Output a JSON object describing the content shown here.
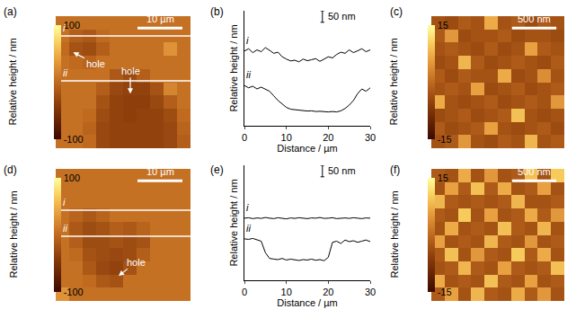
{
  "chart_data": [
    {
      "type": "heatmap",
      "panel": "(a)",
      "x": [
        1.5,
        4.5,
        7.5,
        10.5,
        13.5,
        16.5,
        19.5,
        22.5,
        25.5,
        28.5
      ],
      "y": [
        1.5,
        4.5,
        7.5,
        10.5,
        13.5,
        16.5,
        19.5,
        22.5,
        25.5,
        28.5
      ],
      "xlim": [
        0,
        30
      ],
      "ylim": [
        0,
        30
      ],
      "tick_labels": false,
      "z": [
        [
          5,
          5,
          0,
          -30,
          -35,
          -35,
          -35,
          -35,
          -30,
          -10
        ],
        [
          5,
          5,
          -5,
          -30,
          -35,
          -35,
          -35,
          -35,
          -30,
          -5
        ],
        [
          5,
          5,
          0,
          -25,
          -35,
          -38,
          -35,
          -35,
          -25,
          0
        ],
        [
          5,
          5,
          5,
          -20,
          -35,
          -38,
          -38,
          -30,
          -10,
          5
        ],
        [
          5,
          5,
          5,
          -10,
          -30,
          -35,
          -35,
          -20,
          20,
          5
        ],
        [
          5,
          5,
          5,
          5,
          -15,
          -25,
          -10,
          5,
          5,
          5
        ],
        [
          5,
          0,
          -5,
          5,
          5,
          5,
          5,
          5,
          5,
          5
        ],
        [
          0,
          -20,
          -25,
          -10,
          5,
          5,
          5,
          5,
          30,
          5
        ],
        [
          5,
          -10,
          -15,
          0,
          5,
          5,
          5,
          5,
          5,
          5
        ],
        [
          5,
          5,
          5,
          5,
          5,
          5,
          5,
          5,
          5,
          5
        ]
      ],
      "colorbar": {
        "title": "Relative height / nm",
        "range": [
          -100,
          100
        ],
        "ticks": [
          -100,
          100
        ]
      },
      "scale_bar": {
        "length": 10,
        "label": "10 µm"
      },
      "lines": [
        {
          "label": "i",
          "y": 25.5
        },
        {
          "label": "ii",
          "y": 15.3
        }
      ],
      "annotations": [
        {
          "text": "hole",
          "x": 3.9,
          "y": 21.8,
          "text_x": 8.8,
          "text_y": 19.2
        },
        {
          "text": "hole",
          "x": 16.6,
          "y": 12.4,
          "text_x": 16.6,
          "text_y": 17.6
        }
      ]
    },
    {
      "type": "line",
      "panel": "(b)",
      "x": [
        0,
        1,
        2,
        3,
        4,
        5,
        6,
        7,
        8,
        9,
        10,
        11,
        12,
        13,
        14,
        15,
        16,
        17,
        18,
        19,
        20,
        21,
        22,
        23,
        24,
        25,
        26,
        27,
        28,
        29,
        30
      ],
      "xlim": [
        0,
        30
      ],
      "xticks": [
        0,
        10,
        20,
        30
      ],
      "ylim": [
        0,
        500
      ],
      "x_label": "Distance / µm",
      "y_label": "Relative height / nm",
      "tick_labels": "x",
      "grid": false,
      "series": [
        {
          "name": "i",
          "color": "#000000",
          "values": [
            325,
            335,
            318,
            330,
            322,
            340,
            328,
            315,
            320,
            300,
            290,
            282,
            285,
            278,
            290,
            283,
            287,
            292,
            280,
            290,
            300,
            295,
            310,
            320,
            315,
            330,
            318,
            326,
            335,
            322,
            330
          ]
        },
        {
          "name": "ii",
          "color": "#000000",
          "values": [
            175,
            165,
            172,
            160,
            168,
            158,
            150,
            130,
            110,
            95,
            80,
            72,
            70,
            68,
            66,
            64,
            65,
            62,
            63,
            61,
            60,
            62,
            60,
            65,
            75,
            90,
            110,
            140,
            160,
            150,
            165
          ]
        }
      ],
      "scale_bar": {
        "length": 50,
        "label": "50 nm"
      }
    },
    {
      "type": "heatmap",
      "panel": "(c)",
      "x": [
        0.075,
        0.225,
        0.375,
        0.525,
        0.675,
        0.825,
        0.975,
        1.125,
        1.275,
        1.425
      ],
      "y": [
        0.075,
        0.225,
        0.375,
        0.525,
        0.675,
        0.825,
        0.975,
        1.125,
        1.275,
        1.425
      ],
      "xlim": [
        0,
        1.5
      ],
      "ylim": [
        0,
        1.5
      ],
      "tick_labels": false,
      "z": [
        [
          -3,
          -2,
          5,
          -3,
          -4,
          -2,
          -3,
          8,
          -3,
          -2
        ],
        [
          -2,
          -4,
          -3,
          -2,
          6,
          -3,
          -4,
          -3,
          -2,
          -4
        ],
        [
          -4,
          -3,
          -2,
          -4,
          -3,
          -2,
          9,
          -3,
          -4,
          -3
        ],
        [
          7,
          -3,
          -4,
          -3,
          -2,
          -4,
          -3,
          -2,
          -3,
          5
        ],
        [
          -3,
          -2,
          -3,
          6,
          -4,
          -3,
          -2,
          -4,
          -3,
          -2
        ],
        [
          -2,
          -4,
          -2,
          -3,
          -3,
          7,
          -4,
          -3,
          4,
          -3
        ],
        [
          -4,
          -3,
          8,
          -2,
          -4,
          -3,
          -2,
          -3,
          -4,
          -2
        ],
        [
          -3,
          -2,
          -3,
          -4,
          -2,
          -4,
          -3,
          6,
          -2,
          -3
        ],
        [
          -2,
          5,
          -4,
          -3,
          -3,
          -2,
          -4,
          -3,
          -3,
          -4
        ],
        [
          -3,
          -4,
          -2,
          -3,
          7,
          -3,
          -2,
          -4,
          -2,
          -3
        ]
      ],
      "colorbar": {
        "title": "Relative height / nm",
        "range": [
          -15,
          15
        ],
        "ticks": [
          -15,
          15
        ]
      },
      "scale_bar": {
        "length": 0.5,
        "label": "500 nm"
      }
    },
    {
      "type": "heatmap",
      "panel": "(d)",
      "x": [
        1.5,
        4.5,
        7.5,
        10.5,
        13.5,
        16.5,
        19.5,
        22.5,
        25.5,
        28.5
      ],
      "y": [
        1.5,
        4.5,
        7.5,
        10.5,
        13.5,
        16.5,
        19.5,
        22.5,
        25.5,
        28.5
      ],
      "xlim": [
        0,
        30
      ],
      "ylim": [
        0,
        30
      ],
      "tick_labels": false,
      "z": [
        [
          30,
          5,
          5,
          5,
          5,
          5,
          5,
          5,
          5,
          5
        ],
        [
          5,
          5,
          0,
          -15,
          -20,
          5,
          5,
          5,
          5,
          5
        ],
        [
          5,
          5,
          -15,
          -30,
          -35,
          -20,
          5,
          5,
          5,
          5
        ],
        [
          5,
          0,
          -20,
          -25,
          -30,
          -25,
          -10,
          5,
          5,
          5
        ],
        [
          5,
          -10,
          -25,
          -25,
          -20,
          -25,
          -20,
          5,
          5,
          5
        ],
        [
          5,
          -15,
          -25,
          -20,
          -10,
          -15,
          -5,
          5,
          5,
          5
        ],
        [
          5,
          -5,
          -15,
          -5,
          5,
          5,
          5,
          5,
          5,
          5
        ],
        [
          5,
          5,
          5,
          5,
          5,
          5,
          5,
          5,
          5,
          5
        ],
        [
          5,
          5,
          5,
          5,
          5,
          5,
          5,
          5,
          5,
          5
        ],
        [
          5,
          5,
          5,
          5,
          5,
          5,
          5,
          5,
          5,
          5
        ]
      ],
      "colorbar": {
        "title": "Relative height / nm",
        "range": [
          -100,
          100
        ],
        "ticks": [
          -100,
          100
        ]
      },
      "scale_bar": {
        "length": 10,
        "label": "10 µm"
      },
      "lines": [
        {
          "label": "i",
          "y": 20.6
        },
        {
          "label": "ii",
          "y": 14.7
        }
      ],
      "annotations": [
        {
          "text": "hole",
          "x": 14.0,
          "y": 5.7,
          "text_x": 17.9,
          "text_y": 8.8
        }
      ]
    },
    {
      "type": "line",
      "panel": "(e)",
      "x": [
        0,
        1,
        2,
        3,
        4,
        5,
        6,
        7,
        8,
        9,
        10,
        11,
        12,
        13,
        14,
        15,
        16,
        17,
        18,
        19,
        20,
        21,
        22,
        23,
        24,
        25,
        26,
        27,
        28,
        29,
        30
      ],
      "xlim": [
        0,
        30
      ],
      "xticks": [
        0,
        10,
        20,
        30
      ],
      "ylim": [
        0,
        500
      ],
      "x_label": "Distance / µm",
      "y_label": "Relative height / nm",
      "tick_labels": "x",
      "grid": false,
      "series": [
        {
          "name": "i",
          "color": "#000000",
          "values": [
            270,
            272,
            268,
            271,
            269,
            273,
            270,
            268,
            272,
            270,
            267,
            271,
            269,
            272,
            270,
            268,
            271,
            270,
            273,
            269,
            270,
            272,
            268,
            270,
            271,
            269,
            272,
            270,
            268,
            271,
            270
          ]
        },
        {
          "name": "ii",
          "color": "#000000",
          "values": [
            180,
            178,
            182,
            175,
            170,
            120,
            95,
            92,
            90,
            95,
            88,
            92,
            90,
            86,
            90,
            88,
            92,
            87,
            90,
            85,
            100,
            165,
            170,
            160,
            175,
            168,
            172,
            165,
            170,
            175,
            168
          ]
        }
      ],
      "scale_bar": {
        "length": 50,
        "label": "50 nm"
      }
    },
    {
      "type": "heatmap",
      "panel": "(f)",
      "x": [
        0.075,
        0.225,
        0.375,
        0.525,
        0.675,
        0.825,
        0.975,
        1.125,
        1.275,
        1.425
      ],
      "y": [
        0.075,
        0.225,
        0.375,
        0.525,
        0.675,
        0.825,
        0.975,
        1.125,
        1.275,
        1.425
      ],
      "xlim": [
        0,
        1.5
      ],
      "ylim": [
        0,
        1.5
      ],
      "tick_labels": false,
      "z": [
        [
          -2,
          6,
          -3,
          8,
          -2,
          -3,
          7,
          -2,
          5,
          -3
        ],
        [
          7,
          -3,
          -2,
          -3,
          9,
          -2,
          -3,
          6,
          -3,
          -2
        ],
        [
          -3,
          -2,
          8,
          -2,
          -3,
          6,
          -2,
          -3,
          -2,
          9
        ],
        [
          -2,
          9,
          -3,
          5,
          -2,
          -3,
          10,
          -2,
          7,
          -3
        ],
        [
          6,
          -3,
          -2,
          -3,
          8,
          -2,
          -3,
          5,
          -3,
          -2
        ],
        [
          -3,
          7,
          -3,
          -2,
          -3,
          9,
          -2,
          -3,
          8,
          -3
        ],
        [
          -2,
          -3,
          10,
          -3,
          6,
          -3,
          -2,
          7,
          -2,
          5
        ],
        [
          8,
          -2,
          -3,
          -2,
          -3,
          -2,
          8,
          -3,
          -3,
          -2
        ],
        [
          -3,
          6,
          -2,
          9,
          -2,
          7,
          -3,
          -2,
          6,
          -3
        ],
        [
          -2,
          -3,
          7,
          -3,
          5,
          -3,
          -2,
          9,
          -3,
          10
        ]
      ],
      "colorbar": {
        "title": "Relative height / nm",
        "range": [
          -15,
          15
        ],
        "ticks": [
          -15,
          15
        ]
      },
      "scale_bar": {
        "length": 0.5,
        "label": "500 nm"
      }
    }
  ]
}
